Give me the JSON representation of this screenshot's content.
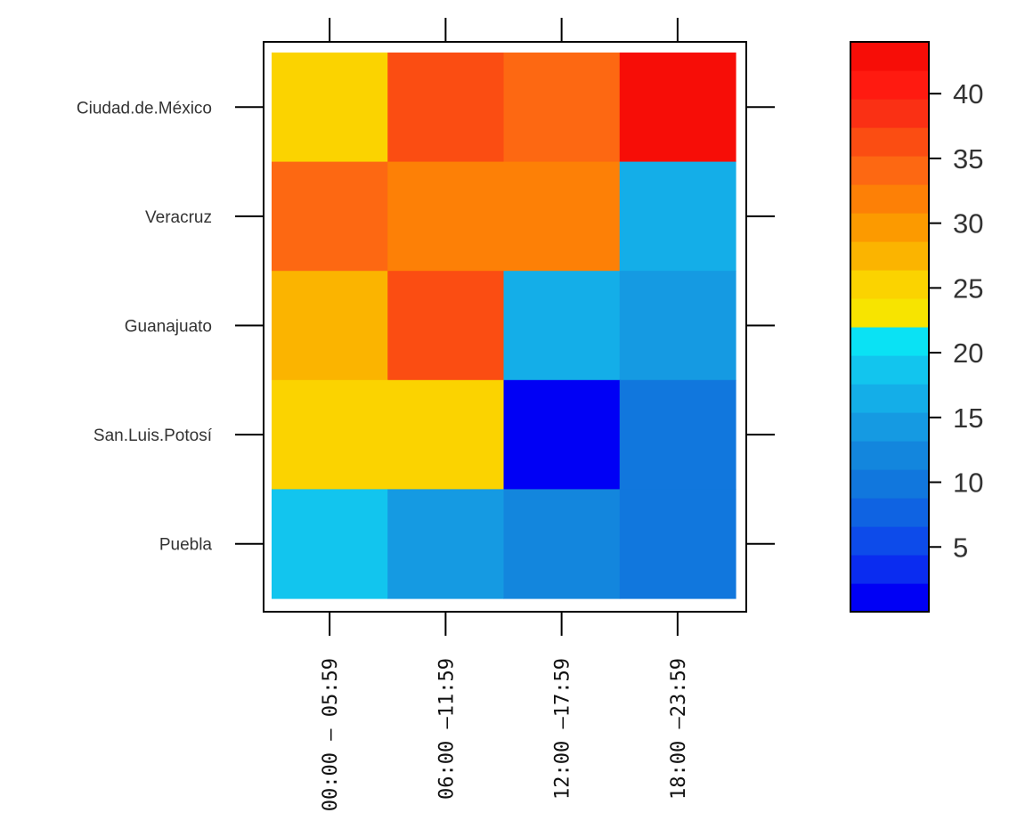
{
  "chart_data": {
    "type": "heatmap",
    "title": "",
    "xlabel": "",
    "ylabel": "",
    "x_categories": [
      "00:00 – 05:59",
      "06:00 –11:59",
      "12:00 –17:59",
      "18:00 –23:59"
    ],
    "y_categories": [
      "Ciudad.de.México",
      "Veracruz",
      "Guanajuato",
      "San.Luis.Potosí",
      "Puebla"
    ],
    "values": [
      [
        26,
        36,
        33,
        42
      ],
      [
        35,
        31,
        31,
        17
      ],
      [
        28,
        36,
        17,
        14
      ],
      [
        25,
        25,
        2,
        10
      ],
      [
        18,
        15,
        12,
        10
      ]
    ],
    "colorbar": {
      "ticks": [
        5,
        10,
        15,
        20,
        25,
        30,
        35,
        40
      ],
      "range": [
        0,
        44
      ],
      "colors": [
        "#0000f5",
        "#0a2cf0",
        "#0d4bea",
        "#0f63e2",
        "#1177dd",
        "#1386dd",
        "#159ae2",
        "#14aee8",
        "#12c5ee",
        "#0ae2f4",
        "#f7e400",
        "#fbd300",
        "#fbb400",
        "#fc9a00",
        "#fd8006",
        "#fd6812",
        "#fb4d12",
        "#fa3014",
        "#ff1a10",
        "#f70d07"
      ]
    }
  }
}
